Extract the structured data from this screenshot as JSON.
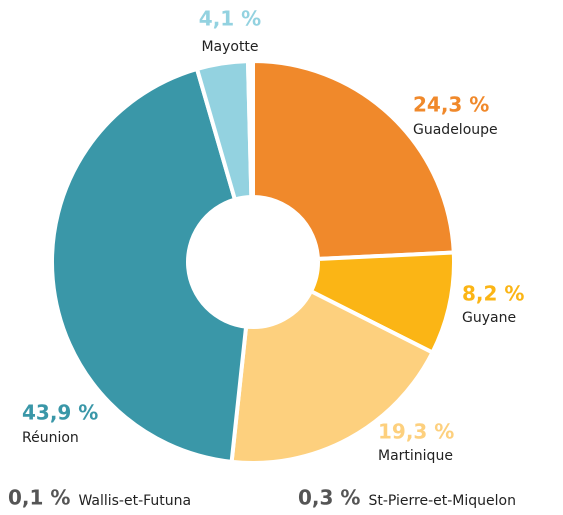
{
  "chart_data": {
    "type": "donut",
    "categories": [
      "Guadeloupe",
      "Guyane",
      "Martinique",
      "Réunion",
      "Mayotte",
      "Wallis-et-Futuna",
      "St-Pierre-et-Miquelon"
    ],
    "values": [
      24.3,
      8.2,
      19.3,
      43.9,
      4.1,
      0.1,
      0.3
    ],
    "value_labels": [
      "24,3 %",
      "8,2 %",
      "19,3 %",
      "43,9 %",
      "4,1 %",
      "0,1 %",
      "0,3 %"
    ],
    "colors": [
      "#f0892b",
      "#fbb515",
      "#fdd07e",
      "#3a97a8",
      "#93d2e0",
      "#555555",
      "#555555"
    ]
  }
}
